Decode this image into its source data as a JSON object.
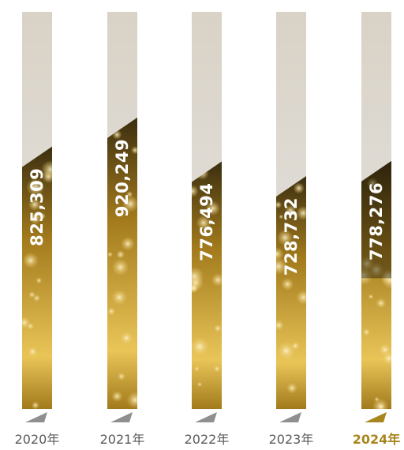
{
  "chart_data": {
    "type": "bar",
    "orientation": "vertical",
    "categories": [
      "2020年",
      "2021年",
      "2022年",
      "2023年",
      "2024年"
    ],
    "values": [
      825309,
      920249,
      776494,
      728732,
      778276
    ],
    "value_labels": [
      "825,309",
      "920,249",
      "776,494",
      "728,732",
      "778,276"
    ],
    "highlight_index": 4,
    "ylim": [
      0,
      1300000
    ],
    "title": "",
    "xlabel": "",
    "ylabel": "",
    "grid": false,
    "legend": "none",
    "colors": {
      "track_top": "#d9d2c6",
      "track_bottom": "#e6e6e6",
      "fill_dark": "#3b2e10",
      "fill_mid": "#a27a1c",
      "fill_light": "#e9c558",
      "highlight_text": "#a8861e",
      "marker": "#8f8f8f",
      "marker_highlight": "#a8861e",
      "label_default": "#5a5a5a"
    }
  }
}
